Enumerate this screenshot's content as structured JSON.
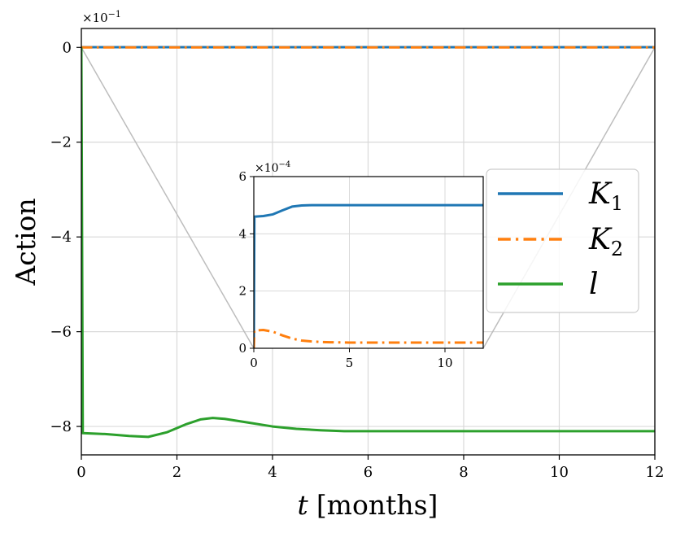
{
  "chart_data": {
    "type": "line",
    "xlabel_var": "t",
    "xlabel_unit": "[months]",
    "ylabel": "Action",
    "xlim": [
      0,
      12
    ],
    "ylim": [
      -0.86,
      0.04
    ],
    "y_scale_label": "×10",
    "y_scale_exp": "−1",
    "grid": true,
    "legend_position": "center-right",
    "x_ticks": [
      0,
      2,
      4,
      6,
      8,
      10,
      12
    ],
    "x_tick_labels": [
      "0",
      "2",
      "4",
      "6",
      "8",
      "10",
      "12"
    ],
    "y_ticks": [
      0,
      -0.2,
      -0.4,
      -0.6,
      -0.8
    ],
    "y_tick_labels": [
      "0",
      "−2",
      "−4",
      "−6",
      "−8"
    ],
    "series": [
      {
        "name": "K",
        "name_sub": "1",
        "color": "#1f77b4",
        "style": "solid",
        "x": [
          0,
          0.02,
          12
        ],
        "y": [
          0,
          0.00046,
          0.0005
        ]
      },
      {
        "name": "K",
        "name_sub": "2",
        "color": "#ff7f0e",
        "style": "dashdot",
        "x": [
          0,
          12
        ],
        "y": [
          6e-05,
          2e-05
        ]
      },
      {
        "name": "l",
        "name_sub": "",
        "color": "#2ca02c",
        "style": "solid",
        "x": [
          0,
          0.015,
          0.03,
          0.5,
          1.0,
          1.4,
          1.8,
          2.2,
          2.5,
          2.75,
          3.0,
          3.5,
          4.0,
          4.5,
          5.0,
          5.5,
          6.0,
          8.0,
          10.0,
          12.0
        ],
        "y": [
          0,
          -0.4,
          -0.814,
          -0.816,
          -0.82,
          -0.822,
          -0.812,
          -0.795,
          -0.785,
          -0.782,
          -0.784,
          -0.792,
          -0.8,
          -0.805,
          -0.808,
          -0.81,
          -0.81,
          -0.81,
          -0.81,
          -0.81
        ]
      }
    ],
    "inset": {
      "xlim": [
        0,
        12
      ],
      "ylim": [
        0,
        6
      ],
      "y_scale_label": "×10",
      "y_scale_exp": "−4",
      "x_ticks": [
        0,
        5,
        10
      ],
      "x_tick_labels": [
        "0",
        "5",
        "10"
      ],
      "y_ticks": [
        0,
        2,
        4,
        6
      ],
      "y_tick_labels": [
        "0",
        "2",
        "4",
        "6"
      ],
      "series": [
        {
          "name": "K1",
          "color": "#1f77b4",
          "style": "solid",
          "x": [
            0,
            0.03,
            0.5,
            1.0,
            1.5,
            2.0,
            2.5,
            3.0,
            4.0,
            6.0,
            12.0
          ],
          "y": [
            0,
            4.6,
            4.62,
            4.68,
            4.82,
            4.95,
            4.99,
            5.0,
            5.0,
            5.0,
            5.0
          ]
        },
        {
          "name": "K2",
          "color": "#ff7f0e",
          "style": "dashdot",
          "x": [
            0,
            0.03,
            0.5,
            1.0,
            1.5,
            2.0,
            2.5,
            3.0,
            3.5,
            4.0,
            5.0,
            6.0,
            12.0
          ],
          "y": [
            0,
            0.62,
            0.64,
            0.58,
            0.45,
            0.34,
            0.27,
            0.24,
            0.22,
            0.21,
            0.2,
            0.2,
            0.2
          ]
        }
      ]
    }
  }
}
